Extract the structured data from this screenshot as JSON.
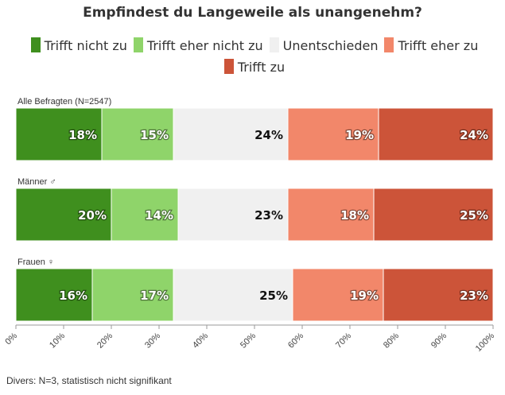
{
  "chart_data": {
    "type": "bar",
    "orientation": "horizontal",
    "stacked": true,
    "title": "Empfindest du Langeweile als unangenehm?",
    "legend_position": "top",
    "categories": [
      "Alle Befragten (N=2547)",
      "Männer ♂",
      "Frauen ♀"
    ],
    "series": [
      {
        "name": "Trifft nicht zu",
        "color": "#3f8f1e",
        "values": [
          18,
          20,
          16
        ]
      },
      {
        "name": "Trifft eher nicht zu",
        "color": "#8fd46a",
        "values": [
          15,
          14,
          17
        ]
      },
      {
        "name": "Unentschieden",
        "color": "#f0f0f0",
        "values": [
          24,
          23,
          25
        ]
      },
      {
        "name": "Trifft eher zu",
        "color": "#f2876a",
        "values": [
          19,
          18,
          19
        ]
      },
      {
        "name": "Trifft zu",
        "color": "#cc5439",
        "values": [
          24,
          25,
          23
        ]
      }
    ],
    "xlim": [
      0,
      100
    ],
    "x_ticks": [
      "0%",
      "10%",
      "20%",
      "30%",
      "40%",
      "50%",
      "60%",
      "70%",
      "80%",
      "90%",
      "100%"
    ],
    "grid": false,
    "note": "Divers: N=3, statistisch nicht signifikant"
  }
}
